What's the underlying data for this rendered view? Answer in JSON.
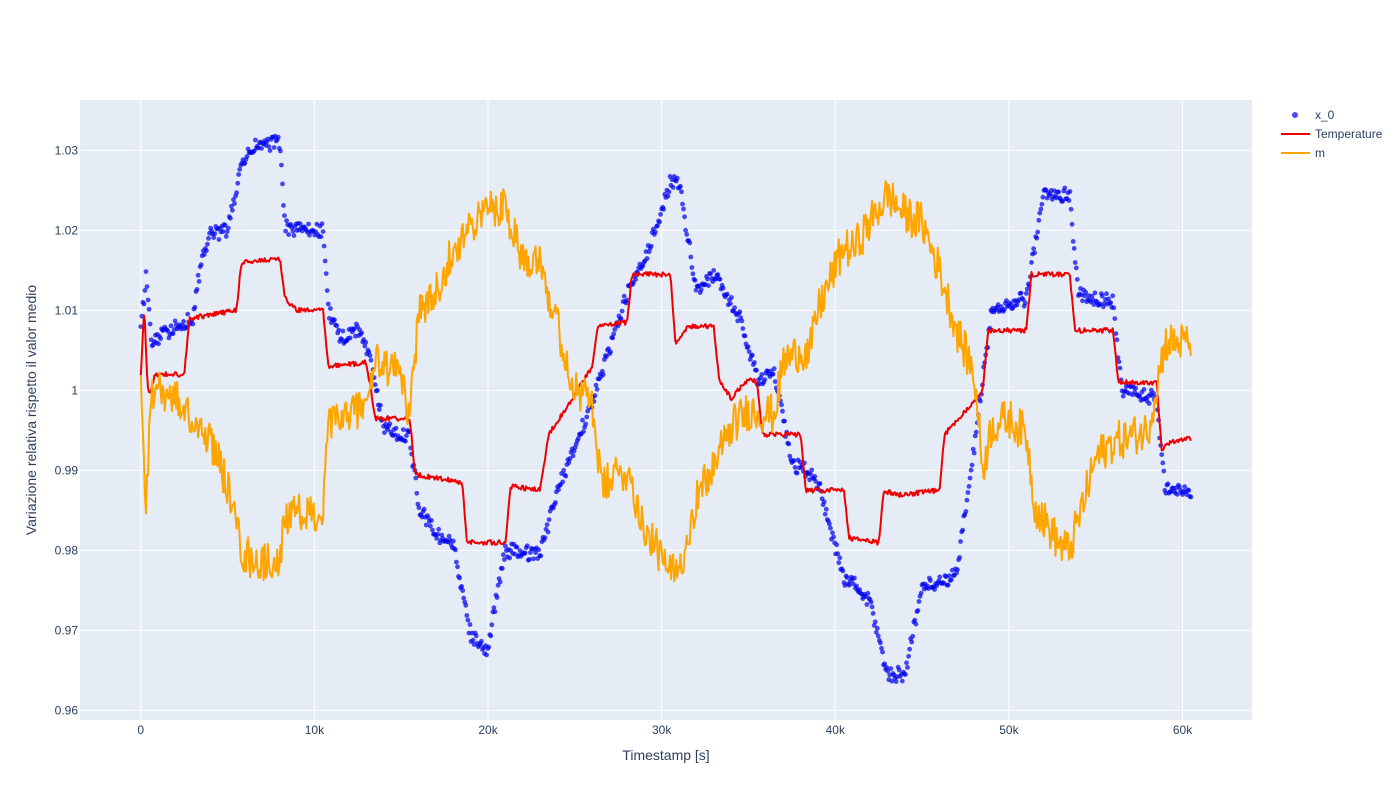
{
  "chart_data": {
    "type": "line",
    "title": "",
    "xlabel": "Timestamp [s]",
    "ylabel": "Variazione relativa rispetto il valor medio",
    "xlim": [
      -3500,
      64000
    ],
    "ylim": [
      0.9588,
      1.0363
    ],
    "x_ticks": [
      0,
      10000,
      20000,
      30000,
      40000,
      50000,
      60000
    ],
    "x_tick_labels": [
      "0",
      "10k",
      "20k",
      "30k",
      "40k",
      "50k",
      "60k"
    ],
    "y_ticks": [
      0.96,
      0.97,
      0.98,
      0.99,
      1.0,
      1.01,
      1.02,
      1.03
    ],
    "y_tick_labels": [
      "0.96",
      "0.97",
      "0.98",
      "0.99",
      "1",
      "1.01",
      "1.02",
      "1.03"
    ],
    "grid": true,
    "legend_position": "top-right outside",
    "colors": {
      "plot_bg": "#E5ECF6",
      "grid": "#ffffff",
      "text": "#2a3f5f"
    },
    "series": [
      {
        "name": "x_0",
        "mode": "markers",
        "color": "#0000ee",
        "noise": 0.0009,
        "x": [
          0,
          300,
          600,
          1000,
          2000,
          3000,
          3500,
          4000,
          5000,
          5800,
          6500,
          8000,
          8300,
          9000,
          10500,
          10800,
          11500,
          12500,
          13000,
          14000,
          15500,
          16000,
          17000,
          18000,
          18500,
          19000,
          20000,
          20500,
          21000,
          23000,
          24000,
          26000,
          28000,
          29000,
          30500,
          31000,
          32000,
          33000,
          34500,
          35500,
          36500,
          37500,
          38000,
          39000,
          40500,
          41000,
          42000,
          43000,
          44000,
          45000,
          46000,
          47000,
          48000,
          49000,
          51000,
          52000,
          53500,
          54000,
          56000,
          56500,
          57500,
          58500,
          59000,
          60500
        ],
        "y": [
          1.0075,
          1.0145,
          1.006,
          1.0065,
          1.008,
          1.009,
          1.0165,
          1.0195,
          1.02,
          1.028,
          1.0305,
          1.031,
          1.0205,
          1.02,
          1.02,
          1.01,
          1.0065,
          1.0075,
          1.0055,
          0.9955,
          0.994,
          0.9855,
          0.982,
          0.981,
          0.9745,
          0.9695,
          0.9675,
          0.9745,
          0.98,
          0.9795,
          0.9875,
          0.9985,
          1.012,
          1.016,
          1.026,
          1.026,
          1.0125,
          1.0145,
          1.009,
          1.0015,
          1.002,
          0.9905,
          0.9905,
          0.9885,
          0.9765,
          0.976,
          0.9735,
          0.9645,
          0.9645,
          0.9755,
          0.976,
          0.977,
          0.993,
          1.01,
          1.0115,
          1.0245,
          1.0245,
          1.012,
          1.011,
          1.0,
          0.9995,
          0.999,
          0.9875,
          0.9875
        ]
      },
      {
        "name": "Temperature",
        "mode": "lines",
        "color": "#ee0000",
        "noise": 0.0003,
        "x": [
          0,
          200,
          400,
          600,
          800,
          1000,
          2500,
          2800,
          5500,
          5800,
          8000,
          8300,
          9000,
          10500,
          10800,
          13000,
          13500,
          15500,
          15800,
          18500,
          18800,
          21000,
          21300,
          23000,
          23500,
          25000,
          26000,
          26300,
          28000,
          28300,
          30500,
          30800,
          31500,
          33000,
          33300,
          34000,
          35000,
          35500,
          35800,
          38000,
          38300,
          40500,
          40800,
          42500,
          42800,
          43500,
          44000,
          46000,
          46300,
          48500,
          48800,
          51000,
          51300,
          53500,
          53800,
          56000,
          56300,
          58500,
          58800,
          59300,
          60500
        ],
        "y": [
          1.002,
          1.0105,
          1.0,
          1.0,
          1.002,
          1.002,
          1.002,
          1.009,
          1.01,
          1.016,
          1.0165,
          1.0115,
          1.01,
          1.01,
          1.003,
          1.0035,
          0.9965,
          0.9965,
          0.9895,
          0.9885,
          0.981,
          0.981,
          0.988,
          0.9875,
          0.9945,
          0.9995,
          1.003,
          1.008,
          1.0085,
          1.0145,
          1.0145,
          1.006,
          1.008,
          1.008,
          1.0015,
          0.999,
          1.0015,
          1.001,
          0.9945,
          0.9945,
          0.9875,
          0.9875,
          0.9815,
          0.981,
          0.9875,
          0.987,
          0.987,
          0.9875,
          0.9945,
          1.0,
          1.0075,
          1.0075,
          1.0145,
          1.0145,
          1.0075,
          1.0075,
          1.001,
          1.001,
          0.9925,
          0.9935,
          0.994
        ]
      },
      {
        "name": "m",
        "mode": "lines",
        "color": "#ffa500",
        "noise": 0.0025,
        "x": [
          0,
          300,
          600,
          1000,
          2000,
          3000,
          4000,
          5000,
          5800,
          6500,
          8000,
          8300,
          9000,
          10500,
          10800,
          12000,
          13000,
          13500,
          15000,
          15500,
          16000,
          17000,
          18000,
          19000,
          20000,
          21000,
          22000,
          23000,
          23500,
          25000,
          26000,
          26500,
          28000,
          29000,
          30500,
          31000,
          32000,
          33000,
          34000,
          35000,
          36500,
          37000,
          38000,
          38500,
          39000,
          40500,
          41000,
          42000,
          43000,
          44000,
          45000,
          46000,
          47000,
          48000,
          48500,
          49000,
          50000,
          51000,
          51500,
          53000,
          53500,
          55000,
          56000,
          58000,
          59000,
          59300,
          60500
        ],
        "y": [
          1.0,
          0.9855,
          1.0,
          1.0,
          0.999,
          0.996,
          0.994,
          0.988,
          0.98,
          0.9785,
          0.9785,
          0.9845,
          0.9845,
          0.9845,
          0.9955,
          0.997,
          0.9985,
          1.0035,
          1.002,
          0.9965,
          1.01,
          1.012,
          1.018,
          1.02,
          1.023,
          1.023,
          1.0165,
          1.017,
          1.012,
          1.0,
          0.9985,
          0.988,
          0.99,
          0.983,
          0.977,
          0.9775,
          0.9865,
          0.9905,
          0.9955,
          0.9975,
          0.997,
          1.0035,
          1.005,
          1.0045,
          1.01,
          1.018,
          1.0175,
          1.021,
          1.0245,
          1.022,
          1.021,
          1.015,
          1.0075,
          1.002,
          0.99,
          0.9955,
          0.9965,
          0.9945,
          0.9855,
          0.9805,
          0.98,
          0.9915,
          0.9935,
          0.995,
          1.006,
          1.006,
          1.006
        ]
      }
    ]
  }
}
